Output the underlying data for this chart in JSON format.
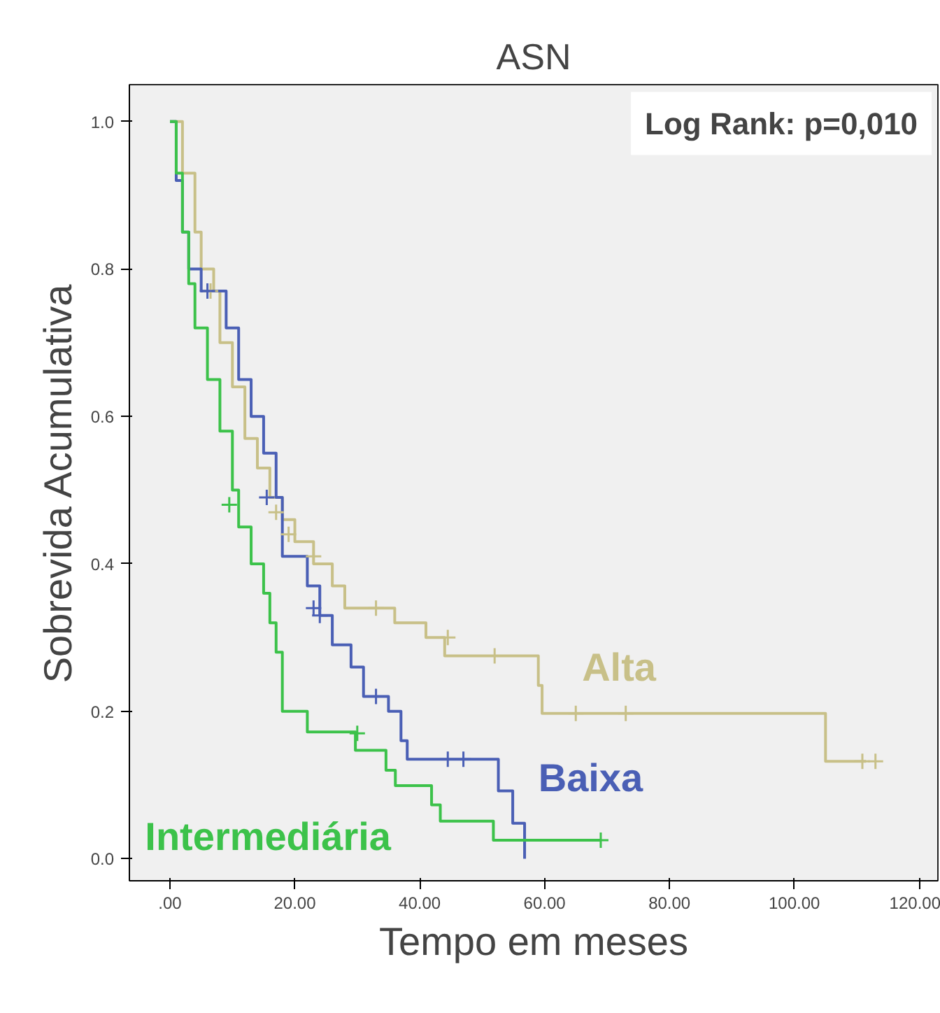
{
  "chart_data": {
    "type": "step",
    "title": "ASN",
    "xlabel": "Tempo em meses",
    "ylabel": "Sobrevida Acumulativa",
    "annotations": [
      "Log Rank: p=0,010"
    ],
    "xlim": [
      -6.5,
      123
    ],
    "ylim": [
      -0.03,
      1.05
    ],
    "xticks": [
      {
        "value": 0,
        "label": ".00"
      },
      {
        "value": 20,
        "label": "20.00"
      },
      {
        "value": 40,
        "label": "40.00"
      },
      {
        "value": 60,
        "label": "60.00"
      },
      {
        "value": 80,
        "label": "80.00"
      },
      {
        "value": 100,
        "label": "100.00"
      },
      {
        "value": 120,
        "label": "120.00"
      }
    ],
    "yticks": [
      {
        "value": 0,
        "label": "0.0"
      },
      {
        "value": 0.2,
        "label": "0.2"
      },
      {
        "value": 0.4,
        "label": "0.4"
      },
      {
        "value": 0.6,
        "label": "0.6"
      },
      {
        "value": 0.8,
        "label": "0.8"
      },
      {
        "value": 1.0,
        "label": "1.0"
      }
    ],
    "grid": false,
    "legend": false,
    "line_style": "solid",
    "series": [
      {
        "name": "Alta",
        "color": "#c8c088",
        "x": [
          0,
          2,
          4,
          5,
          7,
          8,
          10,
          12,
          14,
          16,
          18,
          20,
          23,
          26,
          28,
          36,
          41,
          44,
          59,
          59.6,
          105,
          111.5
        ],
        "values": [
          1.0,
          0.93,
          0.85,
          0.8,
          0.77,
          0.7,
          0.64,
          0.57,
          0.53,
          0.49,
          0.46,
          0.43,
          0.4,
          0.37,
          0.34,
          0.32,
          0.3,
          0.275,
          0.235,
          0.197,
          0.132,
          0.132
        ]
      },
      {
        "name": "Baixa",
        "color": "#4a5fb5",
        "x": [
          0,
          1,
          2,
          3,
          5,
          9,
          11,
          13,
          15,
          17,
          18,
          22,
          24,
          26,
          29,
          31,
          35,
          37,
          38,
          52.6,
          54.9,
          56.8
        ],
        "values": [
          1.0,
          0.92,
          0.85,
          0.8,
          0.77,
          0.72,
          0.65,
          0.6,
          0.55,
          0.49,
          0.41,
          0.37,
          0.33,
          0.29,
          0.26,
          0.22,
          0.2,
          0.16,
          0.135,
          0.092,
          0.048,
          0.0
        ]
      },
      {
        "name": "Intermediária",
        "color": "#3cc24a",
        "x": [
          0,
          1,
          2,
          3,
          4,
          6,
          8,
          10,
          11,
          13,
          15,
          16,
          17,
          18,
          22,
          29.7,
          34.6,
          36.1,
          41.9,
          43.3,
          51.8,
          69
        ],
        "values": [
          1.0,
          0.93,
          0.85,
          0.78,
          0.72,
          0.65,
          0.58,
          0.5,
          0.45,
          0.4,
          0.36,
          0.32,
          0.28,
          0.2,
          0.172,
          0.147,
          0.12,
          0.099,
          0.073,
          0.051,
          0.025,
          0.025
        ]
      },
      {
        "type": "scatter",
        "marker": "cross",
        "color": "#c8c088",
        "x": [
          6.5,
          17,
          19,
          23,
          33,
          44.5,
          52,
          65,
          73,
          110.9,
          113
        ],
        "values": [
          0.77,
          0.47,
          0.44,
          0.41,
          0.34,
          0.3,
          0.275,
          0.197,
          0.197,
          0.132,
          0.132
        ]
      },
      {
        "type": "scatter",
        "marker": "cross",
        "color": "#4a5fb5",
        "x": [
          6,
          15.5,
          23,
          24,
          33,
          44.5,
          47
        ],
        "values": [
          0.77,
          0.49,
          0.34,
          0.33,
          0.22,
          0.135,
          0.135
        ]
      },
      {
        "type": "scatter",
        "marker": "cross",
        "color": "#3cc24a",
        "x": [
          9.5,
          30,
          69
        ],
        "values": [
          0.48,
          0.17,
          0.025
        ]
      }
    ]
  }
}
